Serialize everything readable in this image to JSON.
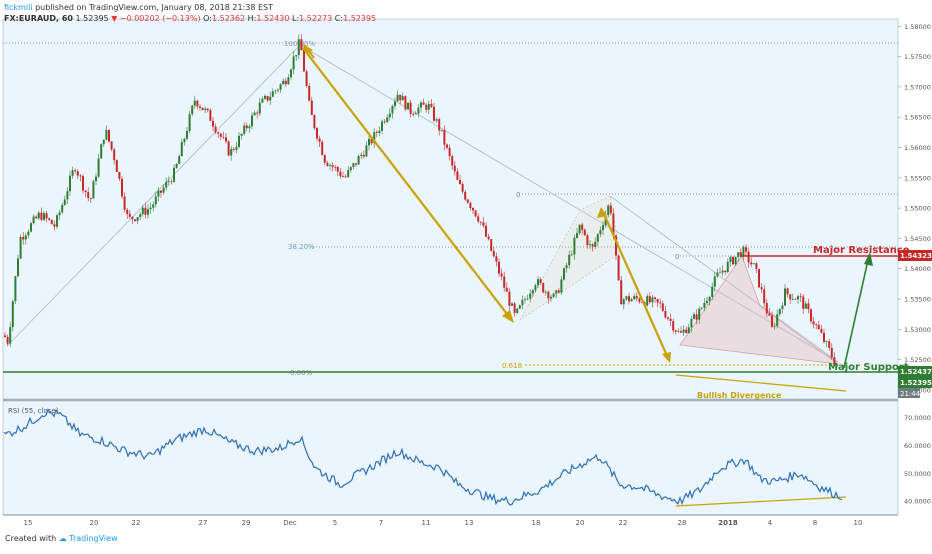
{
  "header": {
    "author": "fickmili",
    "published": "published on TradingView.com, January 08, 2018 21:38 EST",
    "symbol_tf": "FX:EURAUD, 60",
    "last": "1.52395",
    "change": "▼ −0.00202 (−0.13%)",
    "open_label": "O:",
    "open": "1.52362",
    "high_label": "H:",
    "high": "1.52430",
    "low_label": "L:",
    "low": "1.52273",
    "close_label": "C:",
    "close": "1.52395"
  },
  "footer": {
    "created_with": "Created with",
    "brand": "TradingView"
  },
  "colors": {
    "up": "#2e7d32",
    "down": "#c62828",
    "arrow_gold": "#c9a100",
    "resistance": "#c62828",
    "support": "#2e7d32",
    "rsi_line": "#2f6fb3",
    "fib": "#6aa0c8",
    "pane_bg": "#eaf5fd"
  },
  "chart_data": [
    {
      "type": "candlestick",
      "title": "FX:EURAUD, 60",
      "ylim": [
        1.5185,
        1.5812
      ],
      "y_ticks": [
        "1.58000",
        "1.57500",
        "1.57000",
        "1.56500",
        "1.56000",
        "1.55500",
        "1.55000",
        "1.54500",
        "1.54000",
        "1.53500",
        "1.53000",
        "1.52500",
        "1.52000"
      ],
      "x_ticks": [
        "15",
        "20",
        "22",
        "27",
        "29",
        "Dec",
        "5",
        "7",
        "11",
        "13",
        "18",
        "20",
        "22",
        "28",
        "2018",
        "4",
        "8",
        "10"
      ],
      "price_path": [
        [
          0,
          1.53
        ],
        [
          8,
          1.528
        ],
        [
          20,
          1.545
        ],
        [
          40,
          1.549
        ],
        [
          55,
          1.547
        ],
        [
          75,
          1.557
        ],
        [
          90,
          1.551
        ],
        [
          105,
          1.563
        ],
        [
          115,
          1.558
        ],
        [
          128,
          1.548
        ],
        [
          150,
          1.55
        ],
        [
          175,
          1.556
        ],
        [
          195,
          1.568
        ],
        [
          210,
          1.565
        ],
        [
          230,
          1.559
        ],
        [
          260,
          1.567
        ],
        [
          285,
          1.571
        ],
        [
          300,
          1.5775
        ],
        [
          310,
          1.566
        ],
        [
          325,
          1.558
        ],
        [
          345,
          1.555
        ],
        [
          375,
          1.562
        ],
        [
          398,
          1.569
        ],
        [
          410,
          1.566
        ],
        [
          428,
          1.567
        ],
        [
          440,
          1.563
        ],
        [
          458,
          1.554
        ],
        [
          480,
          1.548
        ],
        [
          500,
          1.539
        ],
        [
          515,
          1.532
        ],
        [
          535,
          1.538
        ],
        [
          555,
          1.535
        ],
        [
          580,
          1.547
        ],
        [
          592,
          1.543
        ],
        [
          610,
          1.551
        ],
        [
          620,
          1.535
        ],
        [
          640,
          1.535
        ],
        [
          660,
          1.534
        ],
        [
          680,
          1.529
        ],
        [
          700,
          1.533
        ],
        [
          718,
          1.539
        ],
        [
          742,
          1.543
        ],
        [
          755,
          1.54
        ],
        [
          772,
          1.53
        ],
        [
          785,
          1.536
        ],
        [
          800,
          1.535
        ],
        [
          818,
          1.53
        ],
        [
          838,
          1.5237
        ]
      ],
      "annotations": {
        "fib_levels": [
          "100.00%",
          "38.20%",
          "0",
          "0",
          "0.618",
          "0.00%"
        ],
        "major_resistance": {
          "label": "Major Resistance",
          "value": "1.54323",
          "price": 1.54323
        },
        "major_support": {
          "label": "Major Support",
          "value": "1.52437",
          "price": 1.52437
        },
        "current_price": "1.52395",
        "countdown": "21:44",
        "divergence_label": "Bullish Divergence"
      }
    },
    {
      "type": "line",
      "title": "RSI (55, close)",
      "series": [
        {
          "name": "RSI (55, close)",
          "values": [
            [
              0,
              63
            ],
            [
              25,
              67
            ],
            [
              45,
              72
            ],
            [
              60,
              71
            ],
            [
              80,
              64
            ],
            [
              100,
              62
            ],
            [
              125,
              58
            ],
            [
              150,
              56
            ],
            [
              175,
              62
            ],
            [
              205,
              66
            ],
            [
              230,
              61
            ],
            [
              255,
              58
            ],
            [
              280,
              59
            ],
            [
              300,
              63
            ],
            [
              315,
              52
            ],
            [
              340,
              46
            ],
            [
              370,
              52
            ],
            [
              398,
              58
            ],
            [
              420,
              54
            ],
            [
              440,
              52
            ],
            [
              458,
              46
            ],
            [
              490,
              41
            ],
            [
              510,
              40
            ],
            [
              540,
              44
            ],
            [
              565,
              50
            ],
            [
              590,
              55
            ],
            [
              600,
              56
            ],
            [
              620,
              46
            ],
            [
              640,
              45
            ],
            [
              660,
              42
            ],
            [
              680,
              40
            ],
            [
              700,
              44
            ],
            [
              720,
              52
            ],
            [
              745,
              55
            ],
            [
              760,
              48
            ],
            [
              775,
              47
            ],
            [
              800,
              50
            ],
            [
              820,
              45
            ],
            [
              838,
              42
            ]
          ]
        }
      ],
      "ylim": [
        35,
        76
      ],
      "y_ticks": [
        "70.0000",
        "60.0000",
        "50.0000",
        "40.0000"
      ]
    }
  ]
}
